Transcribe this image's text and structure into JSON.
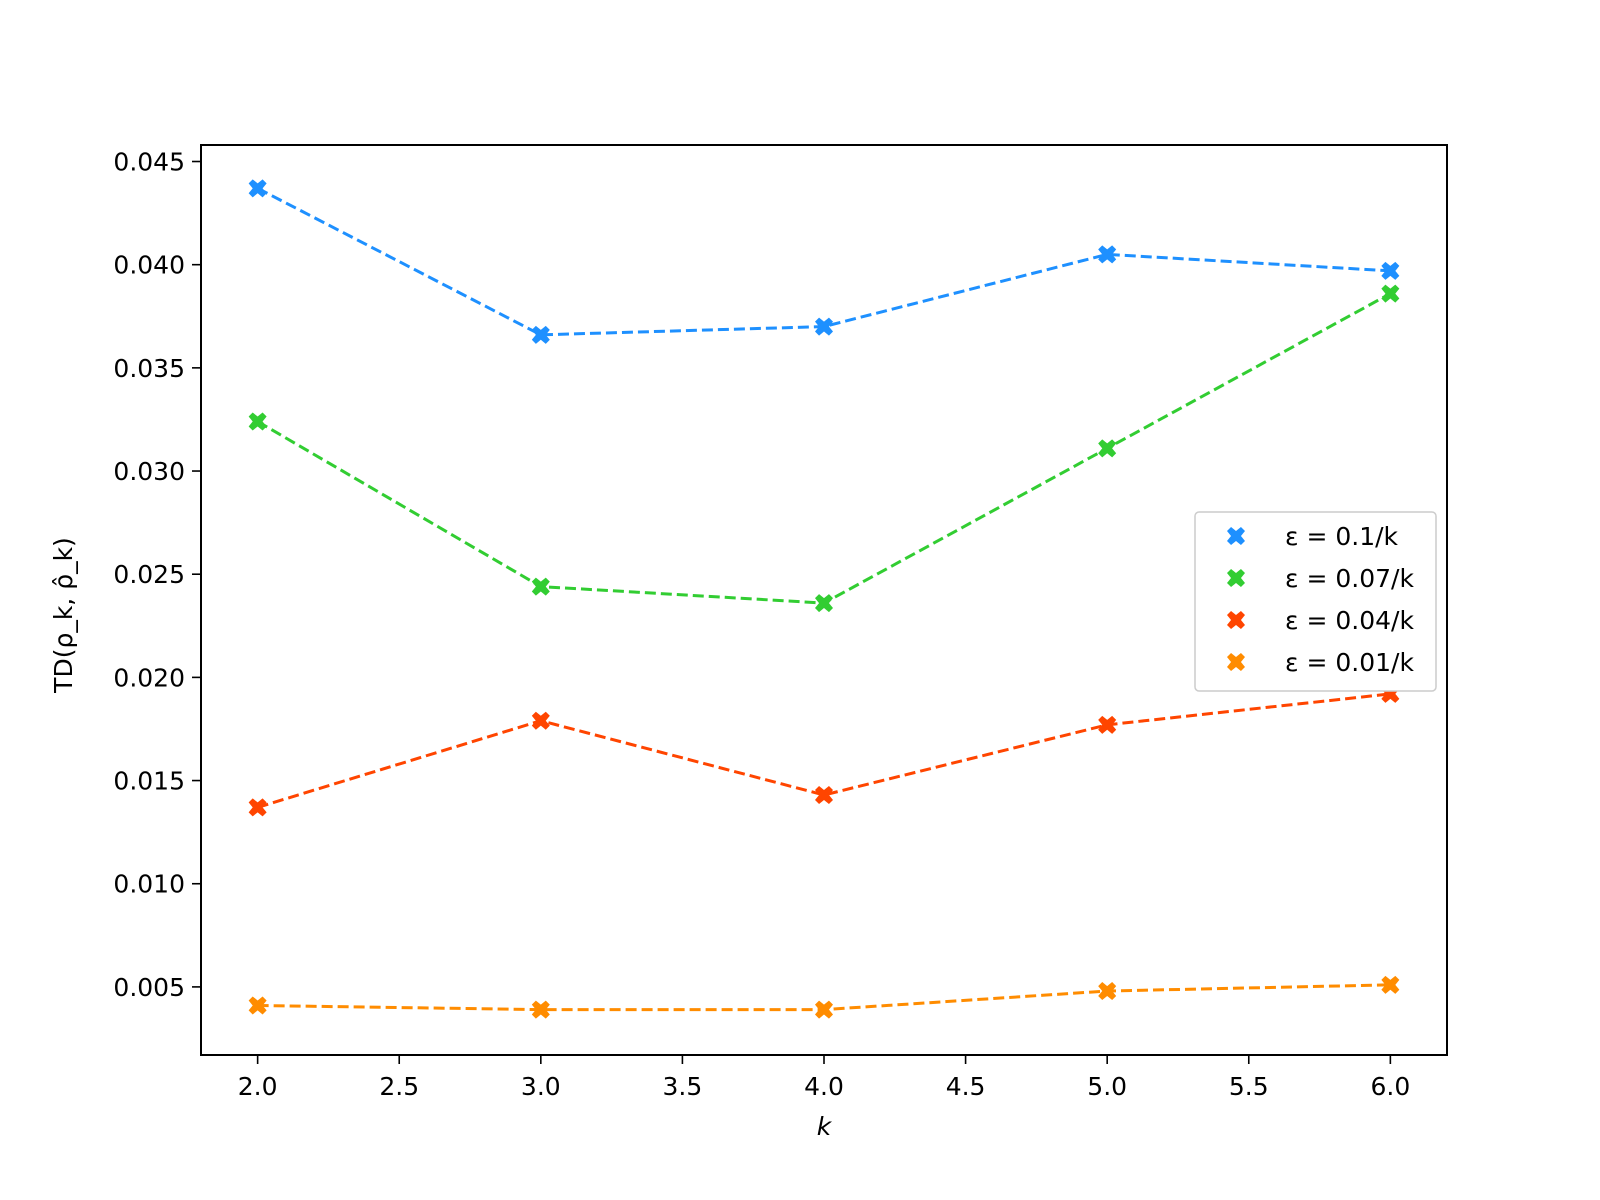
{
  "chart_data": {
    "type": "line",
    "xlabel": "k",
    "ylabel": "TD(ρ_k, ρ̂_k)",
    "xlim": [
      1.8,
      6.2
    ],
    "ylim": [
      0.0017,
      0.0458
    ],
    "xticks": [
      2.0,
      2.5,
      3.0,
      3.5,
      4.0,
      4.5,
      5.0,
      5.5,
      6.0
    ],
    "xtick_labels": [
      "2.0",
      "2.5",
      "3.0",
      "3.5",
      "4.0",
      "4.5",
      "5.0",
      "5.5",
      "6.0"
    ],
    "yticks": [
      0.005,
      0.01,
      0.015,
      0.02,
      0.025,
      0.03,
      0.035,
      0.04,
      0.045
    ],
    "ytick_labels": [
      "0.005",
      "0.010",
      "0.015",
      "0.020",
      "0.025",
      "0.030",
      "0.035",
      "0.040",
      "0.045"
    ],
    "grid": false,
    "legend_position": "center-right",
    "line_style": "dashed",
    "marker": "X",
    "x": [
      2.0,
      3.0,
      4.0,
      5.0,
      6.0
    ],
    "series": [
      {
        "name": "ε = 0.1/k",
        "color": "#1e90ff",
        "values": [
          0.0437,
          0.0366,
          0.037,
          0.0405,
          0.0397
        ]
      },
      {
        "name": "ε = 0.07/k",
        "color": "#32cd32",
        "values": [
          0.0324,
          0.0244,
          0.0236,
          0.0311,
          0.0386
        ]
      },
      {
        "name": "ε = 0.04/k",
        "color": "#ff4500",
        "values": [
          0.0137,
          0.0179,
          0.0143,
          0.0177,
          0.0192
        ]
      },
      {
        "name": "ε = 0.01/k",
        "color": "#ff8c00",
        "values": [
          0.0041,
          0.0039,
          0.0039,
          0.0048,
          0.0051
        ]
      }
    ]
  }
}
